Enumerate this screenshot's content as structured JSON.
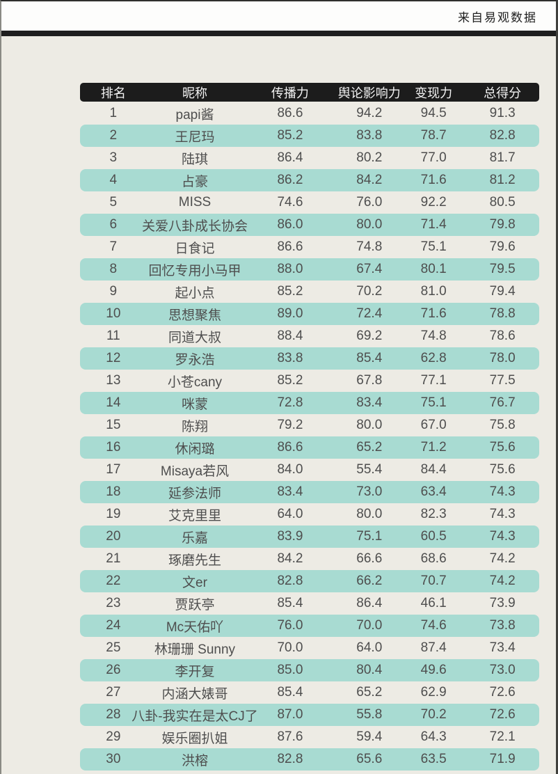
{
  "header": {
    "source_label": "来自易观数据"
  },
  "chart_data": {
    "type": "table",
    "title": "",
    "columns": [
      "排名",
      "昵称",
      "传播力",
      "舆论影响力",
      "变现力",
      "总得分"
    ],
    "rows": [
      [
        "1",
        "papi酱",
        "86.6",
        "94.2",
        "94.5",
        "91.3"
      ],
      [
        "2",
        "王尼玛",
        "85.2",
        "83.8",
        "78.7",
        "82.8"
      ],
      [
        "3",
        "陆琪",
        "86.4",
        "80.2",
        "77.0",
        "81.7"
      ],
      [
        "4",
        "占豪",
        "86.2",
        "84.2",
        "71.6",
        "81.2"
      ],
      [
        "5",
        "MISS",
        "74.6",
        "76.0",
        "92.2",
        "80.5"
      ],
      [
        "6",
        "关爱八卦成长协会",
        "86.0",
        "80.0",
        "71.4",
        "79.8"
      ],
      [
        "7",
        "日食记",
        "86.6",
        "74.8",
        "75.1",
        "79.6"
      ],
      [
        "8",
        "回忆专用小马甲",
        "88.0",
        "67.4",
        "80.1",
        "79.5"
      ],
      [
        "9",
        "起小点",
        "85.2",
        "70.2",
        "81.0",
        "79.4"
      ],
      [
        "10",
        "思想聚焦",
        "89.0",
        "72.4",
        "71.6",
        "78.8"
      ],
      [
        "11",
        "同道大叔",
        "88.4",
        "69.2",
        "74.8",
        "78.6"
      ],
      [
        "12",
        "罗永浩",
        "83.8",
        "85.4",
        "62.8",
        "78.0"
      ],
      [
        "13",
        "小苍cany",
        "85.2",
        "67.8",
        "77.1",
        "77.5"
      ],
      [
        "14",
        "咪蒙",
        "72.8",
        "83.4",
        "75.1",
        "76.7"
      ],
      [
        "15",
        "陈翔",
        "79.2",
        "80.0",
        "67.0",
        "75.8"
      ],
      [
        "16",
        "休闲璐",
        "86.6",
        "65.2",
        "71.2",
        "75.6"
      ],
      [
        "17",
        "Misaya若风",
        "84.0",
        "55.4",
        "84.4",
        "75.6"
      ],
      [
        "18",
        "延参法师",
        "83.4",
        "73.0",
        "63.4",
        "74.3"
      ],
      [
        "19",
        "艾克里里",
        "64.0",
        "80.0",
        "82.3",
        "74.3"
      ],
      [
        "20",
        "乐嘉",
        "83.9",
        "75.1",
        "60.5",
        "74.3"
      ],
      [
        "21",
        "琢磨先生",
        "84.2",
        "66.6",
        "68.6",
        "74.2"
      ],
      [
        "22",
        "文er",
        "82.8",
        "66.2",
        "70.7",
        "74.2"
      ],
      [
        "23",
        "贾跃亭",
        "85.4",
        "86.4",
        "46.1",
        "73.9"
      ],
      [
        "24",
        "Mc天佑吖",
        "76.0",
        "70.0",
        "74.6",
        "73.8"
      ],
      [
        "25",
        "林珊珊 Sunny",
        "70.0",
        "64.0",
        "87.4",
        "73.4"
      ],
      [
        "26",
        "李开复",
        "85.0",
        "80.4",
        "49.6",
        "73.0"
      ],
      [
        "27",
        "内涵大婊哥",
        "85.4",
        "65.2",
        "62.9",
        "72.6"
      ],
      [
        "28",
        "八卦-我实在是太CJ了",
        "87.0",
        "55.8",
        "70.2",
        "72.6"
      ],
      [
        "29",
        "娱乐圈扒姐",
        "87.6",
        "59.4",
        "64.3",
        "72.1"
      ],
      [
        "30",
        "洪榕",
        "82.8",
        "65.6",
        "63.5",
        "71.9"
      ]
    ],
    "layout_hints": {
      "row_highlight": "even ranks have teal pill background",
      "header_style": "black rounded bar, white text",
      "grid": "off"
    }
  },
  "colors": {
    "highlight_row": "#a8dbd2",
    "page_background": "#edebe4",
    "top_band": "#fdfdfc",
    "header_bar": "#1c1c1c",
    "divider": "#1e1e1e",
    "body_text": "#4e4e4e",
    "header_text": "#f2f2f2"
  }
}
